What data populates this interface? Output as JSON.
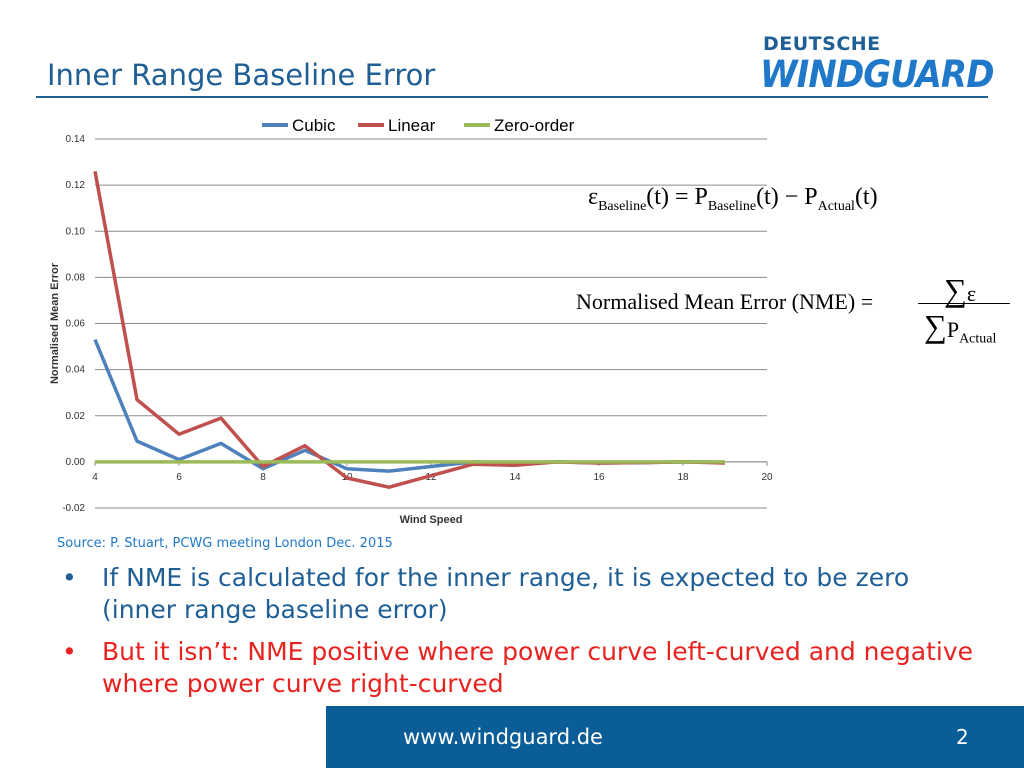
{
  "slide": {
    "title": "Inner Range Baseline Error",
    "page_number": "2"
  },
  "logo": {
    "top": "DEUTSCHE",
    "main": "WINDGUARD"
  },
  "formulas": {
    "baseline_lhs": "ε",
    "baseline_sub1": "Baseline",
    "baseline_mid": "(t) = P",
    "baseline_sub2": "Baseline",
    "baseline_mid2": "(t) − P",
    "baseline_sub3": "Actual",
    "baseline_end": "(t)",
    "nme_label": "Normalised Mean Error (NME) =",
    "nme_sigma": "∑",
    "nme_num": "ε",
    "nme_den": "P",
    "nme_den_sub": "Actual"
  },
  "source": "Source: P. Stuart, PCWG meeting London Dec. 2015",
  "bullets": [
    {
      "marker": "•",
      "text": "If NME is calculated for the inner range, it is expected to be zero (inner range baseline error)"
    },
    {
      "marker": "•",
      "text": "But it isn’t: NME positive where power curve left-curved and negative where power curve right-curved"
    }
  ],
  "footer": {
    "url": "www.windguard.de"
  },
  "colors": {
    "title_blue": "#1f5f96",
    "footer_blue": "#0a5d97",
    "bullet_red": "#e8221e",
    "cubic": "#4f81bd",
    "linear": "#c0504d",
    "zero_order": "#9bbb59"
  },
  "chart_data": {
    "type": "line",
    "title": "",
    "xlabel": "Wind Speed",
    "ylabel": "Normalised Mean Error",
    "xlim": [
      4,
      20
    ],
    "ylim": [
      -0.02,
      0.14
    ],
    "xticks": [
      "4",
      "6",
      "8",
      "10",
      "12",
      "14",
      "16",
      "18",
      "20"
    ],
    "yticks": [
      "-0.02",
      "0.00",
      "0.02",
      "0.04",
      "0.06",
      "0.08",
      "0.10",
      "0.12",
      "0.14"
    ],
    "grid": true,
    "legend": "top",
    "x": [
      4,
      5,
      6,
      7,
      8,
      9,
      10,
      11,
      12,
      13,
      14,
      15,
      16,
      17,
      18,
      19
    ],
    "series": [
      {
        "name": "Cubic",
        "color": "#4f81bd",
        "values": [
          0.053,
          0.009,
          0.001,
          0.008,
          -0.003,
          0.005,
          -0.003,
          -0.004,
          -0.002,
          0.0,
          -0.0005,
          0.0,
          -0.0005,
          -0.0003,
          0.0,
          -0.0002
        ]
      },
      {
        "name": "Linear",
        "color": "#c0504d",
        "values": [
          0.126,
          0.027,
          0.012,
          0.019,
          -0.002,
          0.007,
          -0.007,
          -0.011,
          -0.006,
          -0.001,
          -0.0015,
          0.0,
          -0.0005,
          -0.0003,
          0.0,
          -0.0005
        ]
      },
      {
        "name": "Zero-order",
        "color": "#9bbb59",
        "values": [
          0,
          0,
          0,
          0,
          0,
          0,
          0,
          0,
          0,
          0,
          0,
          0,
          0,
          0,
          0,
          0
        ]
      }
    ]
  }
}
